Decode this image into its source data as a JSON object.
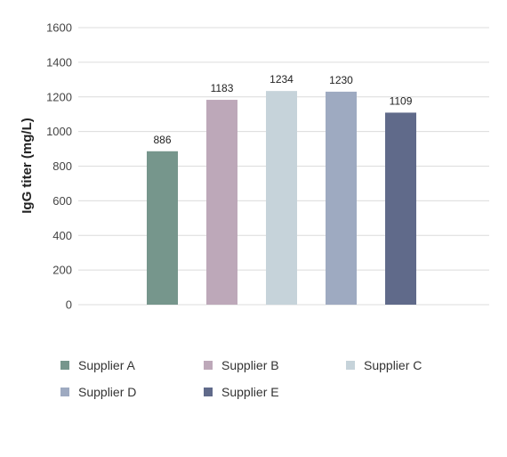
{
  "chart_data": {
    "type": "bar",
    "ylabel": "IgG titer (mg/L)",
    "ylim": [
      0,
      1600
    ],
    "yticks": [
      0,
      200,
      400,
      600,
      800,
      1000,
      1200,
      1400,
      1600
    ],
    "grid": true,
    "legend_position": "bottom",
    "categories": [
      "Supplier A",
      "Supplier B",
      "Supplier C",
      "Supplier D",
      "Supplier E"
    ],
    "values": [
      886,
      1183,
      1234,
      1230,
      1109
    ],
    "data_labels": [
      "886",
      "1183",
      "1234",
      "1230",
      "1109"
    ],
    "colors": [
      "#76968c",
      "#bda8b9",
      "#c6d3da",
      "#9eaac1",
      "#606a8a"
    ]
  }
}
